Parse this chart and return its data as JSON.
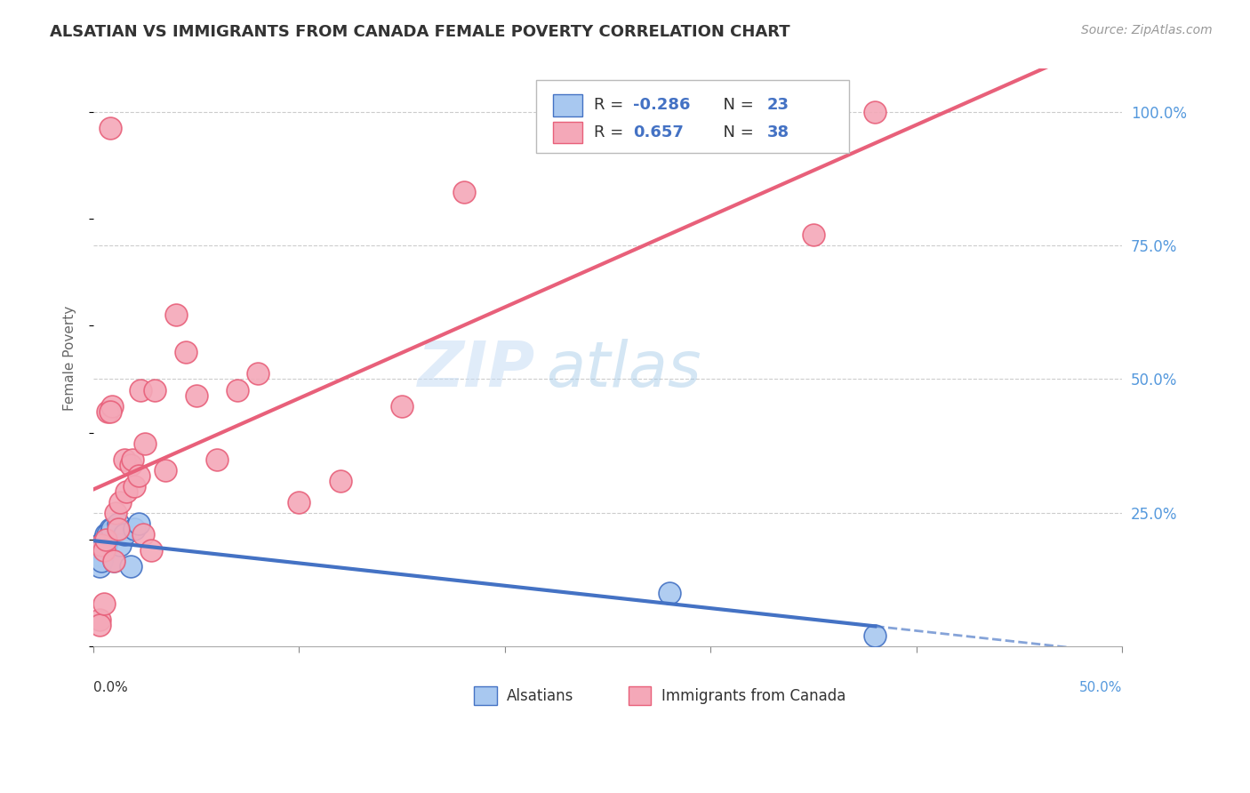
{
  "title": "ALSATIAN VS IMMIGRANTS FROM CANADA FEMALE POVERTY CORRELATION CHART",
  "source": "Source: ZipAtlas.com",
  "ylabel": "Female Poverty",
  "right_yticks": [
    "100.0%",
    "75.0%",
    "50.0%",
    "25.0%"
  ],
  "right_ytick_vals": [
    1.0,
    0.75,
    0.5,
    0.25
  ],
  "xlim": [
    0.0,
    0.5
  ],
  "ylim": [
    0.0,
    1.08
  ],
  "color_blue": "#a8c8f0",
  "color_pink": "#f4a8b8",
  "line_blue": "#4472c4",
  "line_pink": "#e8607a",
  "watermark_zip": "ZIP",
  "watermark_atlas": "atlas",
  "alsatians_x": [
    0.003,
    0.004,
    0.003,
    0.005,
    0.005,
    0.006,
    0.007,
    0.008,
    0.003,
    0.004,
    0.006,
    0.007,
    0.008,
    0.009,
    0.01,
    0.012,
    0.013,
    0.015,
    0.018,
    0.02,
    0.022,
    0.28,
    0.38
  ],
  "alsatians_y": [
    0.17,
    0.18,
    0.19,
    0.18,
    0.2,
    0.21,
    0.2,
    0.22,
    0.15,
    0.16,
    0.19,
    0.21,
    0.21,
    0.22,
    0.16,
    0.23,
    0.19,
    0.21,
    0.15,
    0.22,
    0.23,
    0.1,
    0.02
  ],
  "canada_x": [
    0.003,
    0.004,
    0.005,
    0.006,
    0.007,
    0.008,
    0.009,
    0.01,
    0.011,
    0.012,
    0.013,
    0.015,
    0.016,
    0.018,
    0.019,
    0.02,
    0.022,
    0.023,
    0.024,
    0.025,
    0.028,
    0.03,
    0.035,
    0.04,
    0.045,
    0.05,
    0.06,
    0.07,
    0.08,
    0.1,
    0.12,
    0.15,
    0.18,
    0.003,
    0.005,
    0.008,
    0.35,
    0.38
  ],
  "canada_y": [
    0.05,
    0.19,
    0.18,
    0.2,
    0.44,
    0.97,
    0.45,
    0.16,
    0.25,
    0.22,
    0.27,
    0.35,
    0.29,
    0.34,
    0.35,
    0.3,
    0.32,
    0.48,
    0.21,
    0.38,
    0.18,
    0.48,
    0.33,
    0.62,
    0.55,
    0.47,
    0.35,
    0.48,
    0.51,
    0.27,
    0.31,
    0.45,
    0.85,
    0.04,
    0.08,
    0.44,
    0.77,
    1.0
  ]
}
